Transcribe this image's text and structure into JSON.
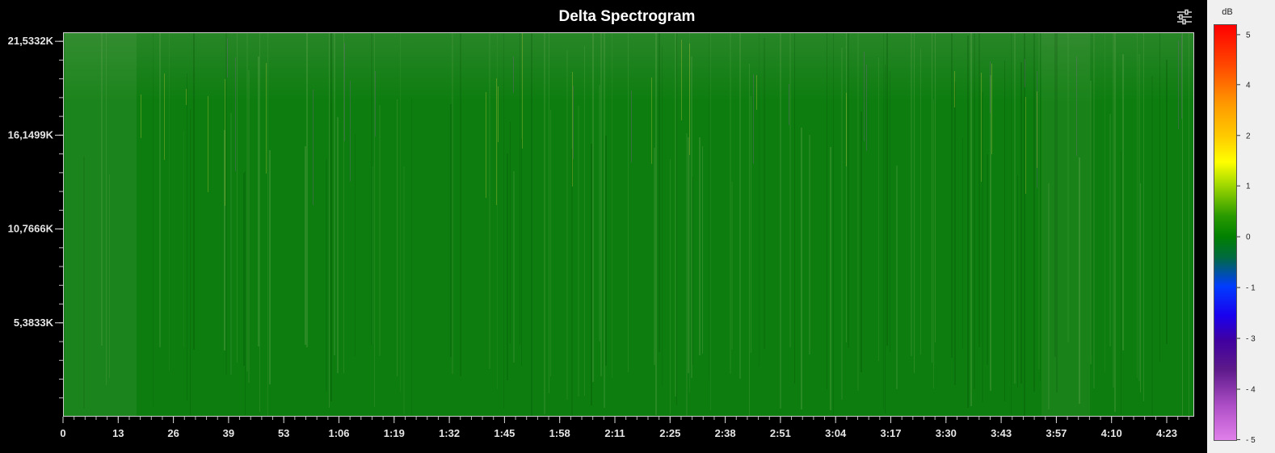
{
  "title": "Delta Spectrogram",
  "settings_icon": "sliders-icon",
  "colors": {
    "background": "#000000",
    "spectrogram_base": "#0d7d0f",
    "colorbar_panel": "#f0f0f0"
  },
  "chart_data": {
    "type": "heatmap",
    "title": "Delta Spectrogram",
    "y_axis": {
      "ticks": [
        "21,5332K",
        "16,1499K",
        "10,7666K",
        "5,3833K"
      ],
      "values": [
        21533.2,
        16149.9,
        10766.6,
        5383.3
      ],
      "range": [
        0,
        22050
      ]
    },
    "x_axis": {
      "ticks": [
        "0",
        "13",
        "26",
        "39",
        "53",
        "1:06",
        "1:19",
        "1:32",
        "1:45",
        "1:58",
        "2:11",
        "2:25",
        "2:38",
        "2:51",
        "3:04",
        "3:17",
        "3:30",
        "3:43",
        "3:57",
        "4:10",
        "4:23"
      ],
      "range_seconds": [
        0,
        270
      ]
    },
    "colorbar": {
      "unit": "dB",
      "labels": [
        "5",
        "4",
        "2",
        "1",
        "0",
        "- 1",
        "- 3",
        "- 4",
        "- 5"
      ],
      "range": [
        -5,
        5
      ]
    }
  }
}
